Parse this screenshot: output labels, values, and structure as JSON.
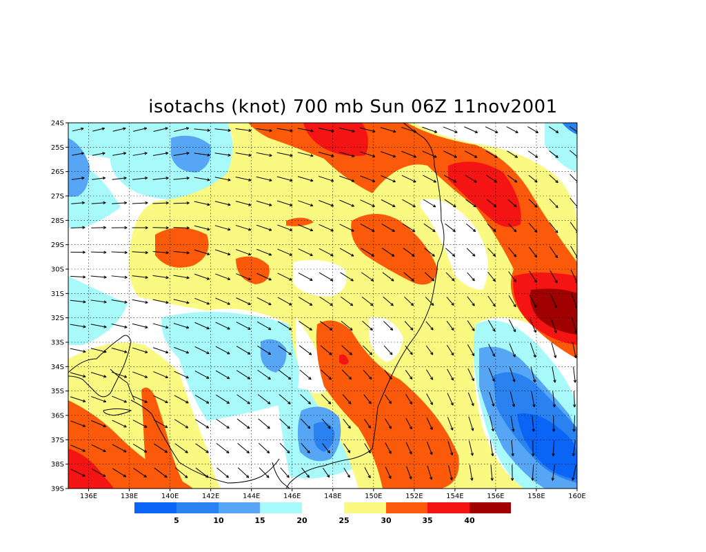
{
  "title": "isotachs (knot) 700 mb Sun 06Z 11nov2001",
  "map": {
    "lon_range": [
      135,
      160
    ],
    "lat_range": [
      -39,
      -24
    ],
    "lon_labels": [
      "136E",
      "138E",
      "140E",
      "142E",
      "144E",
      "146E",
      "148E",
      "150E",
      "152E",
      "154E",
      "156E",
      "158E",
      "160E"
    ],
    "lat_labels": [
      "24S",
      "25S",
      "26S",
      "27S",
      "28S",
      "29S",
      "30S",
      "31S",
      "32S",
      "33S",
      "34S",
      "35S",
      "36S",
      "37S",
      "38S",
      "39S"
    ],
    "grid": "dotted",
    "colors": {
      "lt5": "#0a64f5",
      "5-10": "#2a82f0",
      "10-15": "#56a6f5",
      "15-20": "#a8fafa",
      "20-25": "#ffffff",
      "25-30": "#fafa82",
      "30-35": "#fa5a0a",
      "35-40": "#f51414",
      "gt40": "#a00000"
    }
  },
  "colorbar": {
    "labels": [
      "5",
      "10",
      "15",
      "20",
      "25",
      "30",
      "35",
      "40"
    ]
  }
}
